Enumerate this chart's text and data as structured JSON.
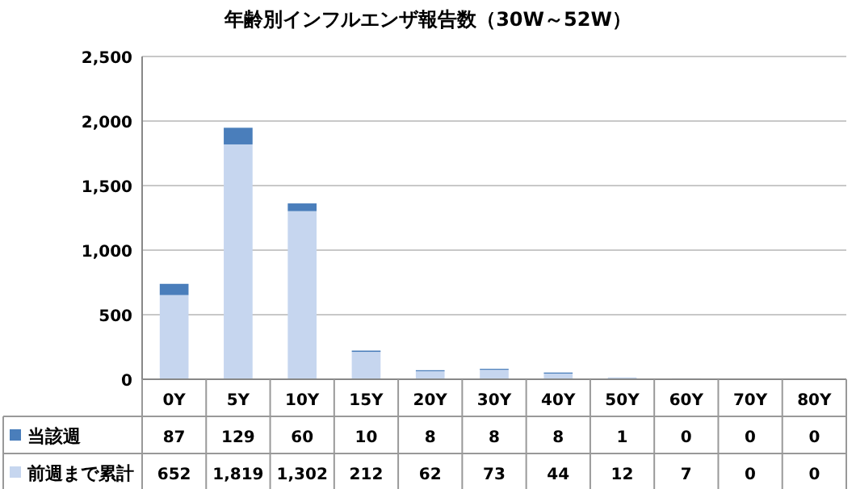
{
  "chart_data": {
    "type": "bar",
    "title": "年齢別インフルエンザ報告数（30W～52W）",
    "categories": [
      "0Y",
      "5Y",
      "10Y",
      "15Y",
      "20Y",
      "30Y",
      "40Y",
      "50Y",
      "60Y",
      "70Y",
      "80Y"
    ],
    "stacked": true,
    "ylim": [
      0,
      2500
    ],
    "yticks": [
      {
        "value": 0,
        "label": "0"
      },
      {
        "value": 500,
        "label": "500"
      },
      {
        "value": 1000,
        "label": "1,000"
      },
      {
        "value": 1500,
        "label": "1,500"
      },
      {
        "value": 2000,
        "label": "2,000"
      },
      {
        "value": 2500,
        "label": "2,500"
      }
    ],
    "grid": "y",
    "legend": "bottom",
    "series": [
      {
        "name": "前週まで累計",
        "color": "#c6d6ef",
        "values": [
          652,
          1819,
          1302,
          212,
          62,
          73,
          44,
          12,
          7,
          0,
          0
        ],
        "value_labels": [
          "652",
          "1,819",
          "1,302",
          "212",
          "62",
          "73",
          "44",
          "12",
          "7",
          "0",
          "0"
        ]
      },
      {
        "name": "当該週",
        "color": "#4a7ebb",
        "values": [
          87,
          129,
          60,
          10,
          8,
          8,
          8,
          1,
          0,
          0,
          0
        ],
        "value_labels": [
          "87",
          "129",
          "60",
          "10",
          "8",
          "8",
          "8",
          "1",
          "0",
          "0",
          "0"
        ]
      }
    ]
  }
}
